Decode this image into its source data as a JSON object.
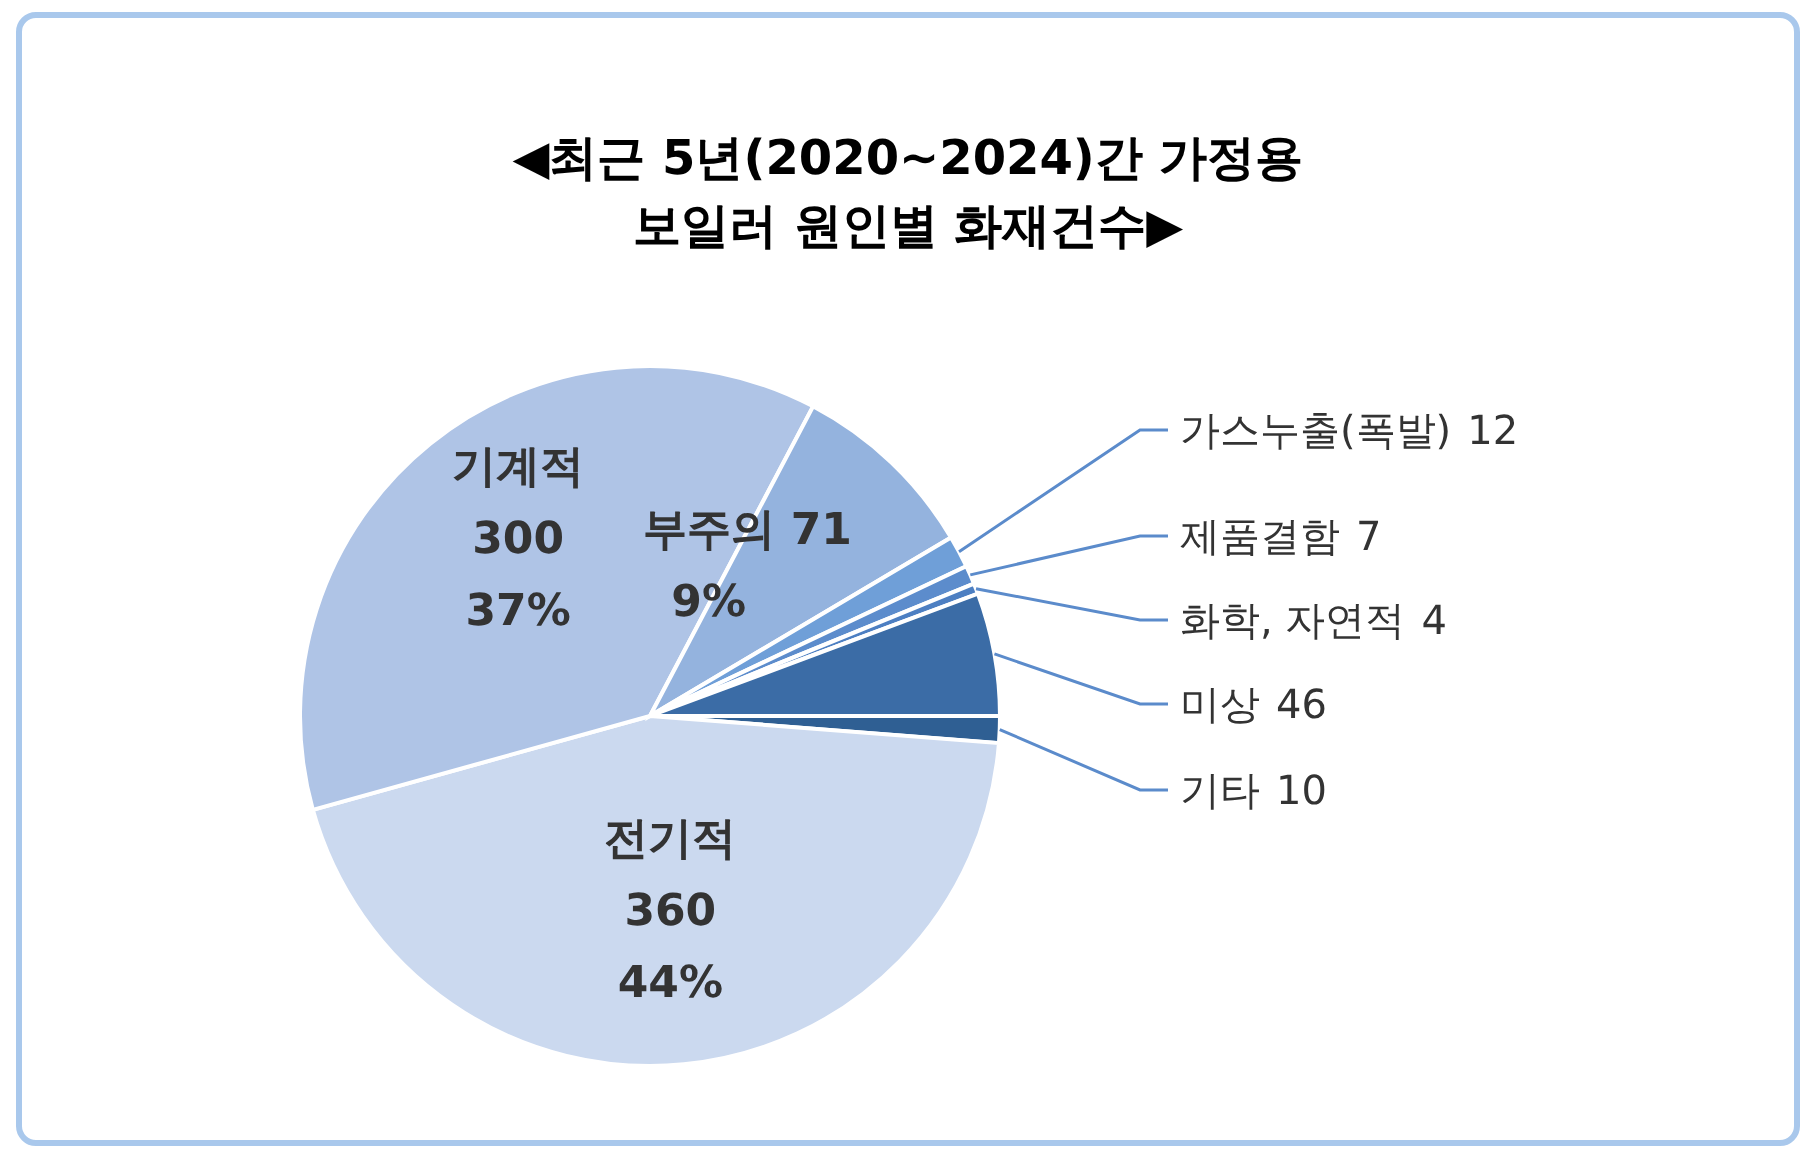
{
  "chart_data": {
    "type": "pie",
    "title": "◀최근 5년(2020~2024)간 가정용 보일러 원인별 화재건수▶",
    "categories": [
      "기타",
      "전기적",
      "기계적",
      "부주의",
      "가스누출(폭발)",
      "제품결함",
      "화학, 자연적",
      "미상"
    ],
    "values": [
      10,
      360,
      300,
      71,
      12,
      7,
      4,
      46
    ],
    "colors": [
      "#2f5f93",
      "#cbd9ef",
      "#afc4e6",
      "#94b3de",
      "#6f9fd8",
      "#5c8ccc",
      "#4d7fc2",
      "#3b6ca6"
    ],
    "data_labels": true,
    "annotations": [
      {
        "text": "44%",
        "x": "전기적"
      },
      {
        "text": "37%",
        "x": "기계적"
      },
      {
        "text": "9%",
        "x": "부주의"
      }
    ]
  }
}
